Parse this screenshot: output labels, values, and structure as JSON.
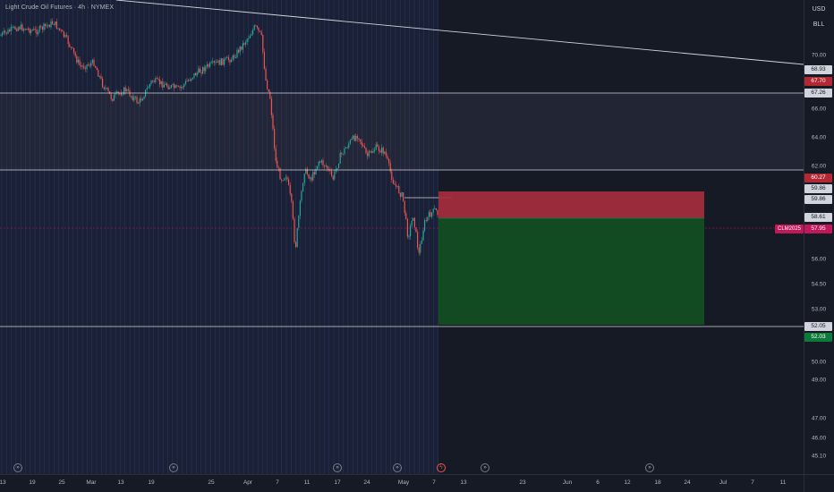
{
  "header": {
    "title": "Light Crude Oil Futures · 4h · NYMEX"
  },
  "price_scale": {
    "currency": "USD",
    "unit": "BLL",
    "ticks": [
      "70.00",
      "66.00",
      "64.00",
      "62.00",
      "56.00",
      "54.50",
      "53.00",
      "50.00",
      "49.00",
      "47.00",
      "46.00",
      "45.10"
    ],
    "tags": [
      {
        "label": "68.93",
        "bg": "#d1d4dc",
        "fg": "#131722"
      },
      {
        "label": "67.70",
        "bg": "#b22833",
        "fg": "#ffffff"
      },
      {
        "label": "67.26",
        "bg": "#d1d4dc",
        "fg": "#131722"
      },
      {
        "label": "60.27",
        "bg": "#b22833",
        "fg": "#ffffff"
      },
      {
        "label": "59.86",
        "bg": "#d1d4dc",
        "fg": "#131722"
      },
      {
        "label": "59.86",
        "bg": "#d1d4dc",
        "fg": "#131722"
      },
      {
        "label": "58.61",
        "bg": "#d1d4dc",
        "fg": "#131722"
      },
      {
        "label": "57.95",
        "bg": "#c2185b",
        "fg": "#ffffff"
      },
      {
        "label": "52.05",
        "bg": "#d1d4dc",
        "fg": "#131722"
      },
      {
        "label": "52.03",
        "bg": "#0d7a3a",
        "fg": "#ffffff"
      }
    ],
    "symbol_tag": "CLM2025"
  },
  "time_axis": {
    "labels": [
      "13",
      "19",
      "25",
      "Mar",
      "13",
      "19",
      "25",
      "Apr",
      "7",
      "11",
      "17",
      "24",
      "May",
      "7",
      "13",
      "23",
      "Jun",
      "6",
      "12",
      "18",
      "24",
      "Jul",
      "7",
      "11"
    ]
  },
  "colors": {
    "background": "#161a25",
    "stop_zone": "#a82e3e",
    "target_zone": "#124d22",
    "up_candle": "#26a69a",
    "down_candle": "#ef5350"
  },
  "icons": [
    "replay-icon",
    "replay-icon",
    "replay-icon",
    "replay-icon",
    "lightning-icon",
    "replay-icon",
    "replay-icon"
  ]
}
